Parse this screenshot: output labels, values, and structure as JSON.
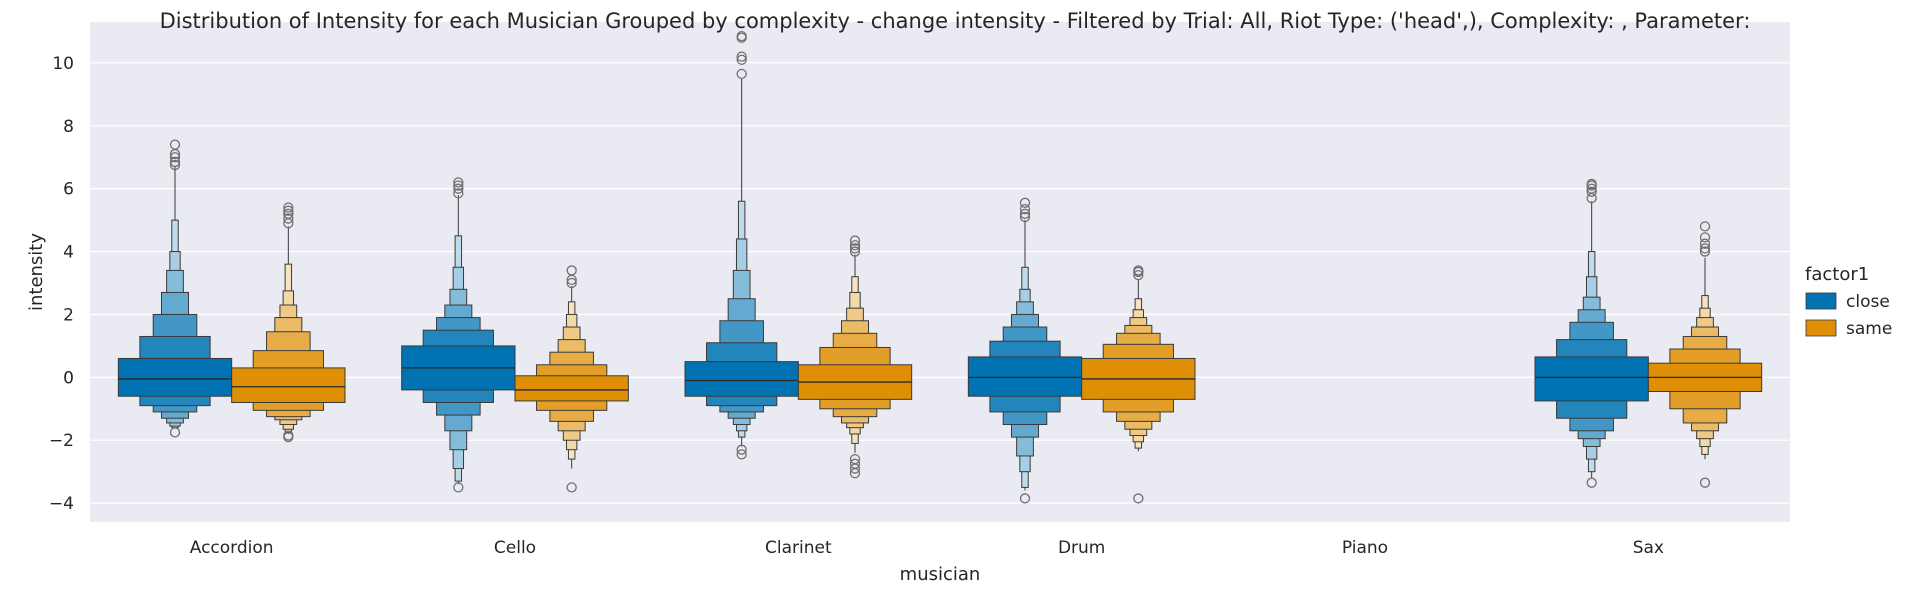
{
  "chart_data": {
    "type": "boxen",
    "title": "Distribution of Intensity for each Musician Grouped by complexity - change intensity - Filtered by Trial: All, Riot Type: ('head',), Complexity: , Parameter:",
    "xlabel": "musician",
    "ylabel": "intensity",
    "ylim": [
      -4.6,
      11.3
    ],
    "yticks": [
      -4,
      -2,
      0,
      2,
      4,
      6,
      8,
      10
    ],
    "ytick_labels": [
      "−4",
      "−2",
      "0",
      "2",
      "4",
      "6",
      "8",
      "10"
    ],
    "categories": [
      "Accordion",
      "Cello",
      "Clarinet",
      "Drum",
      "Piano",
      "Sax"
    ],
    "grid": true,
    "legend": {
      "title": "factor1",
      "position": "right",
      "entries": [
        {
          "label": "close",
          "color": "#0173b2"
        },
        {
          "label": "same",
          "color": "#de8f05"
        }
      ]
    },
    "series": [
      {
        "name": "close",
        "color": "#0173b2",
        "boxes": [
          {
            "median": -0.05,
            "levels": [
              [
                -0.6,
                0.6
              ],
              [
                -0.9,
                1.3
              ],
              [
                -1.1,
                2.0
              ],
              [
                -1.3,
                2.7
              ],
              [
                -1.45,
                3.4
              ],
              [
                -1.55,
                4.0
              ],
              [
                -1.6,
                5.0
              ]
            ],
            "whisker": [
              -1.6,
              6.7
            ],
            "outliers": [
              -1.75,
              6.75,
              6.85,
              7.0,
              7.1,
              7.4
            ]
          },
          {
            "median": 0.3,
            "levels": [
              [
                -0.4,
                1.0
              ],
              [
                -0.8,
                1.5
              ],
              [
                -1.2,
                1.9
              ],
              [
                -1.7,
                2.3
              ],
              [
                -2.3,
                2.8
              ],
              [
                -2.9,
                3.5
              ],
              [
                -3.3,
                4.5
              ]
            ],
            "whisker": [
              -3.4,
              5.8
            ],
            "outliers": [
              -3.5,
              5.85,
              6.0,
              6.1,
              6.2
            ]
          },
          {
            "median": -0.1,
            "levels": [
              [
                -0.6,
                0.5
              ],
              [
                -0.9,
                1.1
              ],
              [
                -1.1,
                1.8
              ],
              [
                -1.3,
                2.5
              ],
              [
                -1.5,
                3.4
              ],
              [
                -1.7,
                4.4
              ],
              [
                -1.9,
                5.6
              ]
            ],
            "whisker": [
              -2.2,
              9.5
            ],
            "outliers": [
              -2.3,
              -2.45,
              9.65,
              10.1,
              10.2,
              10.8,
              10.85
            ]
          },
          {
            "median": 0.0,
            "levels": [
              [
                -0.6,
                0.65
              ],
              [
                -1.1,
                1.15
              ],
              [
                -1.5,
                1.6
              ],
              [
                -1.9,
                2.0
              ],
              [
                -2.5,
                2.4
              ],
              [
                -3.0,
                2.8
              ],
              [
                -3.5,
                3.5
              ]
            ],
            "whisker": [
              -3.6,
              5.0
            ],
            "outliers": [
              -3.85,
              5.1,
              5.2,
              5.35,
              5.55
            ]
          },
          null,
          {
            "median": 0.0,
            "levels": [
              [
                -0.75,
                0.65
              ],
              [
                -1.3,
                1.2
              ],
              [
                -1.7,
                1.75
              ],
              [
                -1.95,
                2.15
              ],
              [
                -2.2,
                2.55
              ],
              [
                -2.6,
                3.2
              ],
              [
                -3.0,
                4.0
              ]
            ],
            "whisker": [
              -3.2,
              5.6
            ],
            "outliers": [
              -3.35,
              5.7,
              5.9,
              6.0,
              6.1,
              6.15
            ]
          }
        ]
      },
      {
        "name": "same",
        "color": "#de8f05",
        "boxes": [
          {
            "median": -0.3,
            "levels": [
              [
                -0.8,
                0.3
              ],
              [
                -1.05,
                0.85
              ],
              [
                -1.25,
                1.45
              ],
              [
                -1.35,
                1.9
              ],
              [
                -1.5,
                2.3
              ],
              [
                -1.65,
                2.75
              ],
              [
                -1.75,
                3.6
              ]
            ],
            "whisker": [
              -1.8,
              4.8
            ],
            "outliers": [
              -1.85,
              -1.9,
              4.9,
              5.05,
              5.2,
              5.3,
              5.4
            ]
          },
          {
            "median": -0.4,
            "levels": [
              [
                -0.75,
                0.05
              ],
              [
                -1.05,
                0.4
              ],
              [
                -1.4,
                0.8
              ],
              [
                -1.7,
                1.2
              ],
              [
                -2.0,
                1.6
              ],
              [
                -2.3,
                2.0
              ],
              [
                -2.6,
                2.4
              ]
            ],
            "whisker": [
              -2.9,
              2.9
            ],
            "outliers": [
              -3.5,
              3.0,
              3.1,
              3.4
            ]
          },
          {
            "median": -0.15,
            "levels": [
              [
                -0.7,
                0.4
              ],
              [
                -1.0,
                0.95
              ],
              [
                -1.25,
                1.4
              ],
              [
                -1.45,
                1.8
              ],
              [
                -1.6,
                2.2
              ],
              [
                -1.8,
                2.7
              ],
              [
                -2.1,
                3.2
              ]
            ],
            "whisker": [
              -2.4,
              3.9
            ],
            "outliers": [
              -2.6,
              -2.75,
              -2.9,
              -3.05,
              4.0,
              4.1,
              4.2,
              4.35
            ]
          },
          {
            "median": -0.05,
            "levels": [
              [
                -0.7,
                0.6
              ],
              [
                -1.1,
                1.05
              ],
              [
                -1.4,
                1.4
              ],
              [
                -1.65,
                1.65
              ],
              [
                -1.85,
                1.9
              ],
              [
                -2.05,
                2.15
              ],
              [
                -2.25,
                2.5
              ]
            ],
            "whisker": [
              -2.35,
              3.1
            ],
            "outliers": [
              -3.85,
              3.25,
              3.35,
              3.4
            ]
          },
          null,
          {
            "median": 0.0,
            "levels": [
              [
                -0.45,
                0.45
              ],
              [
                -1.0,
                0.9
              ],
              [
                -1.45,
                1.3
              ],
              [
                -1.7,
                1.6
              ],
              [
                -1.95,
                1.9
              ],
              [
                -2.2,
                2.2
              ],
              [
                -2.45,
                2.6
              ]
            ],
            "whisker": [
              -2.6,
              3.8
            ],
            "outliers": [
              -3.35,
              4.0,
              4.1,
              4.25,
              4.45,
              4.8
            ]
          }
        ]
      }
    ]
  }
}
